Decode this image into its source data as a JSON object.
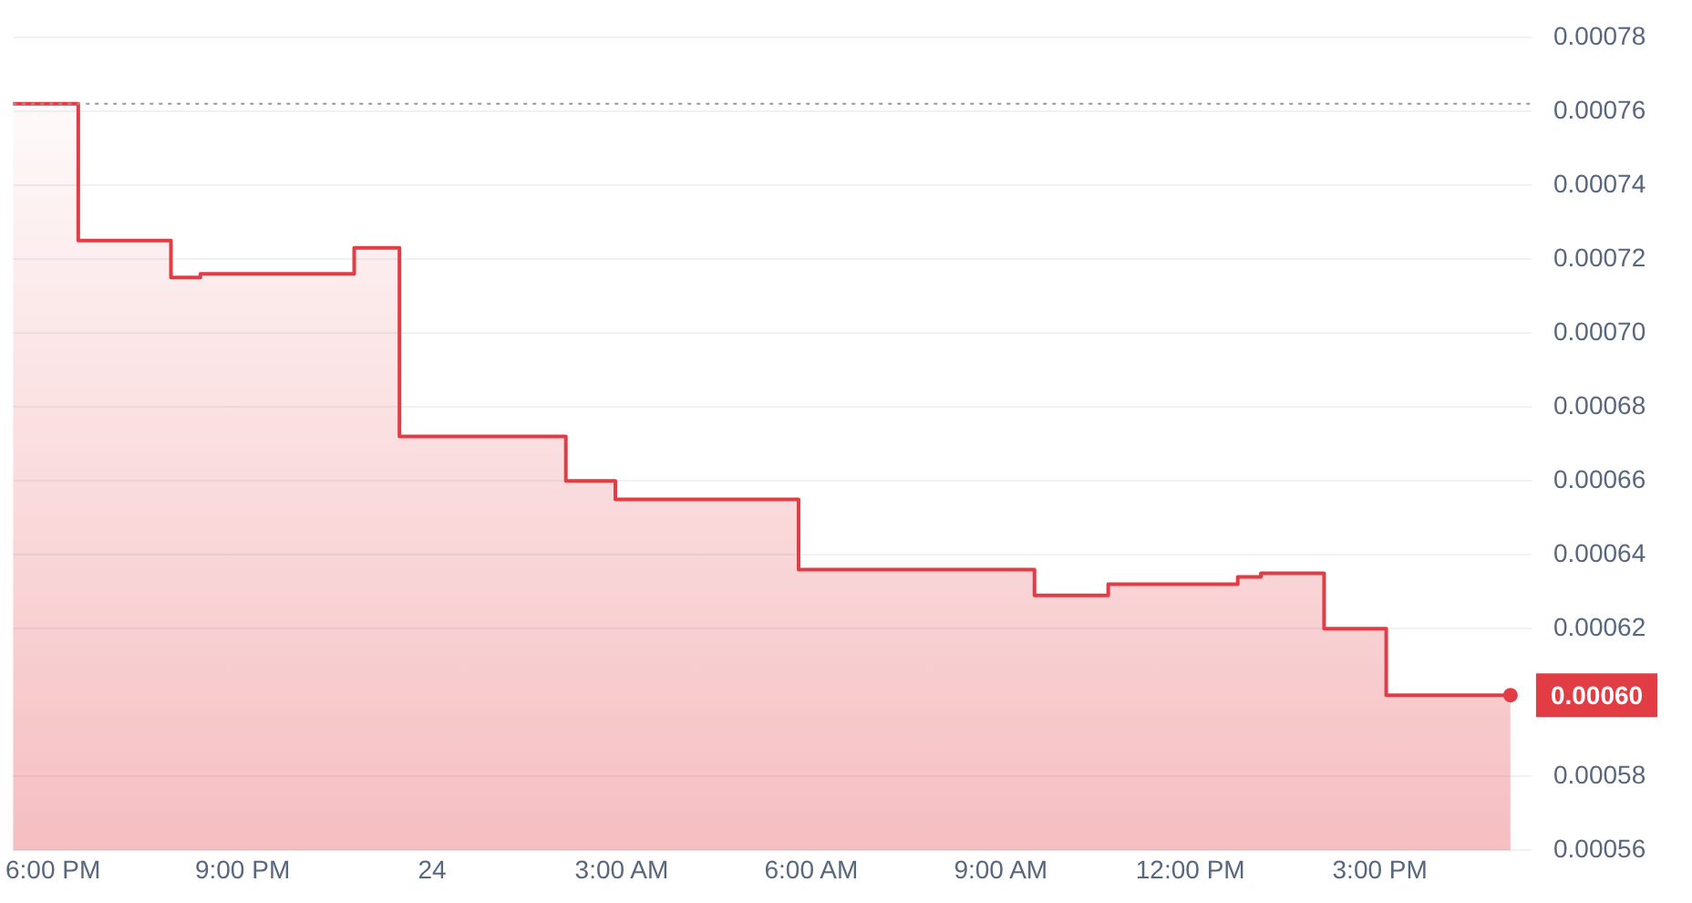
{
  "chart_data": {
    "type": "area",
    "x": [
      "--01-23T17:22",
      "--01-23T18:24",
      "--01-23T18:24",
      "--01-23T19:52",
      "--01-23T19:52",
      "--01-23T20:20",
      "--01-23T20:20",
      "--01-23T22:46",
      "--01-23T22:46",
      "--01-23T23:29",
      "--01-23T23:29",
      "--01-24T02:07",
      "--01-24T02:07",
      "--01-24T02:54",
      "--01-24T02:54",
      "--01-24T05:48",
      "--01-24T05:48",
      "--01-24T09:32",
      "--01-24T09:32",
      "--01-24T10:42",
      "--01-24T10:42",
      "--01-24T12:45",
      "--01-24T12:45",
      "--01-24T13:07",
      "--01-24T13:07",
      "--01-24T14:07",
      "--01-24T14:07",
      "--01-24T15:06",
      "--01-24T15:06",
      "--01-24T17:04"
    ],
    "series": [
      {
        "color": "#e23c45",
        "values": [
          0.000762,
          0.000762,
          0.000725,
          0.000725,
          0.000715,
          0.000715,
          0.000716,
          0.000716,
          0.000723,
          0.000723,
          0.000672,
          0.000672,
          0.00066,
          0.00066,
          0.000655,
          0.000655,
          0.000636,
          0.000636,
          0.000629,
          0.000629,
          0.000632,
          0.000632,
          0.000634,
          0.000634,
          0.000635,
          0.000635,
          0.00062,
          0.00062,
          0.000602,
          0.000602
        ]
      }
    ],
    "xlim": [
      "--01-23T17:22",
      "--01-24T17:24"
    ],
    "xticks": [
      {
        "value": "--01-23T18:00",
        "label": "6:00 PM"
      },
      {
        "value": "--01-23T21:00",
        "label": "9:00 PM"
      },
      {
        "value": "--01-24T00:00",
        "label": "24"
      },
      {
        "value": "--01-24T03:00",
        "label": "3:00 AM"
      },
      {
        "value": "--01-24T06:00",
        "label": "6:00 AM"
      },
      {
        "value": "--01-24T09:00",
        "label": "9:00 AM"
      },
      {
        "value": "--01-24T12:00",
        "label": "12:00 PM"
      },
      {
        "value": "--01-24T15:00",
        "label": "3:00 PM"
      }
    ],
    "ylim": [
      0.00056,
      0.00078
    ],
    "yticks": [
      {
        "value": 0.00056,
        "label": "0.00056"
      },
      {
        "value": 0.00058,
        "label": "0.00058"
      },
      {
        "value": 0.00062,
        "label": "0.00062"
      },
      {
        "value": 0.00064,
        "label": "0.00064"
      },
      {
        "value": 0.00066,
        "label": "0.00066"
      },
      {
        "value": 0.00068,
        "label": "0.00068"
      },
      {
        "value": 0.0007,
        "label": "0.00070"
      },
      {
        "value": 0.00072,
        "label": "0.00072"
      },
      {
        "value": 0.00074,
        "label": "0.00074"
      },
      {
        "value": 0.00076,
        "label": "0.00076"
      },
      {
        "value": 0.00078,
        "label": "0.00078"
      }
    ],
    "ref_lines": [
      {
        "axis": "y",
        "value": 0.000762,
        "line_style": "dotted",
        "color": "#999999"
      }
    ],
    "annotations": [
      {
        "text": "0.00060",
        "x": "--01-24T17:04",
        "y": 0.000602
      }
    ],
    "grid": "y",
    "marker": "none"
  }
}
